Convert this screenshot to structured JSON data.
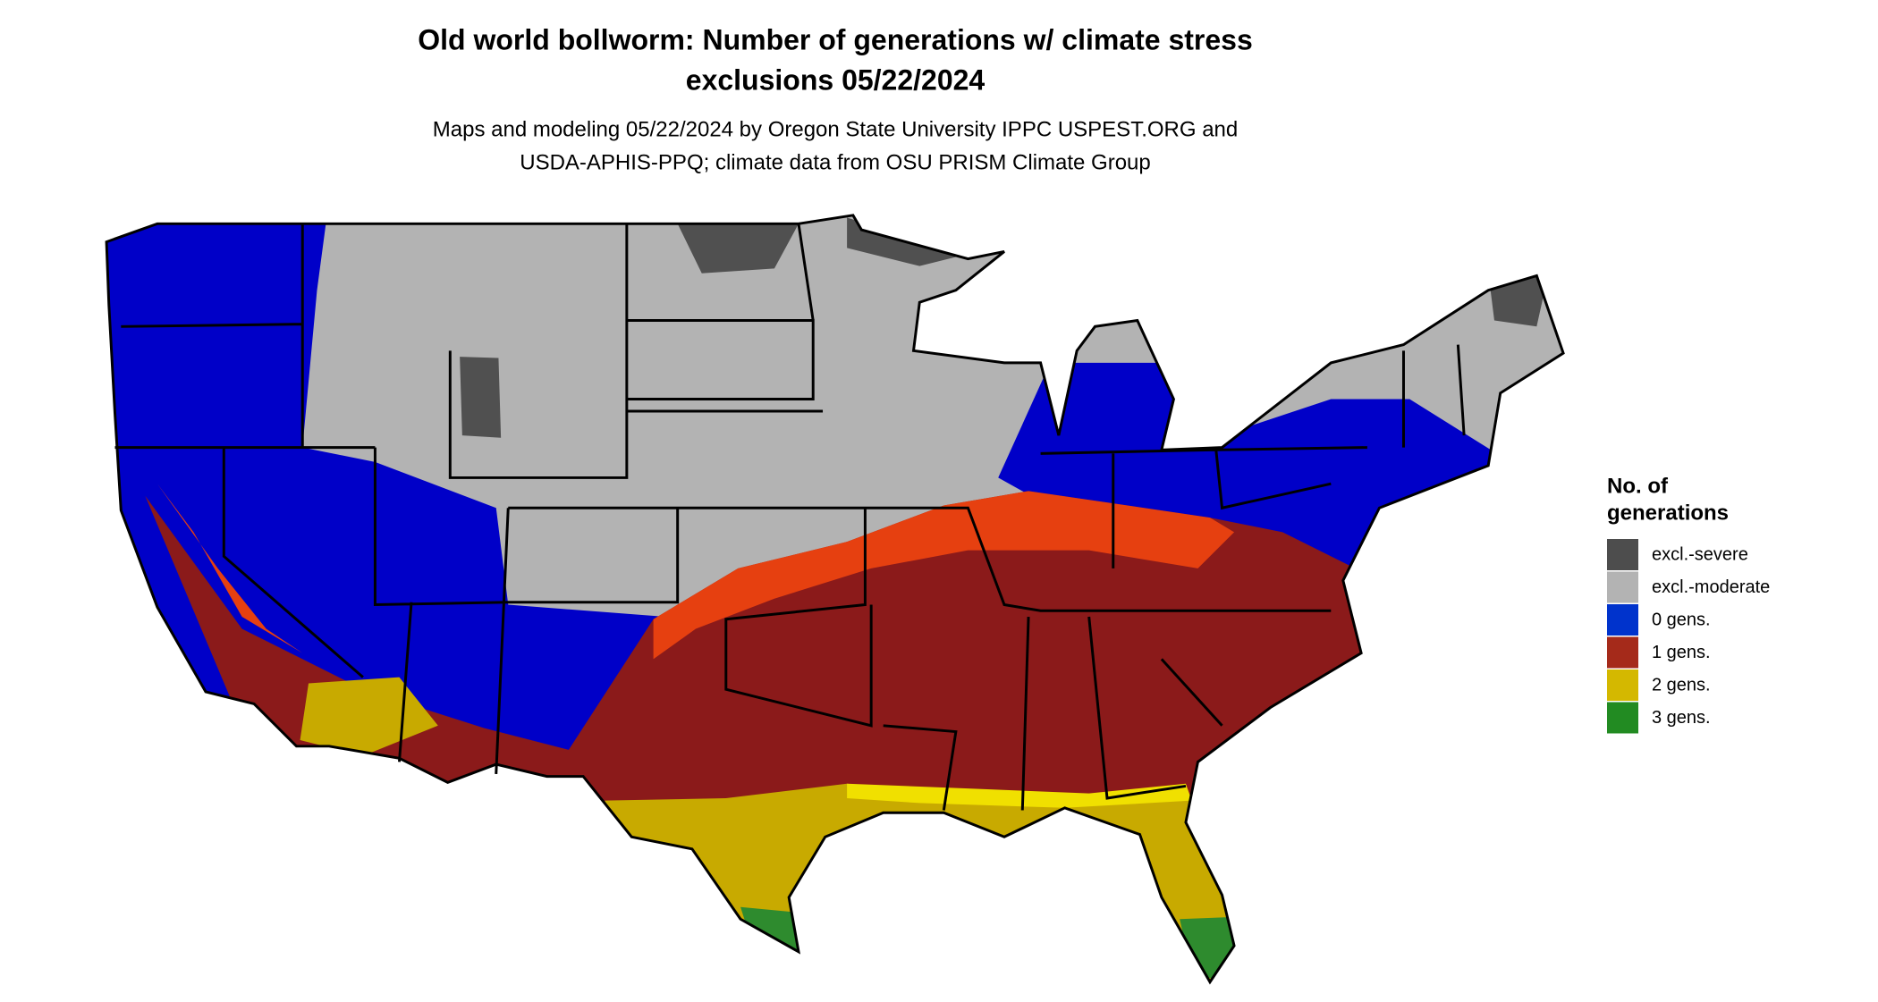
{
  "title": [
    "Old world bollworm: Number of generations w/ climate stress",
    "exclusions 05/22/2024"
  ],
  "subtitle": [
    "Maps and modeling 05/22/2024 by Oregon State University IPPC USPEST.ORG and",
    "USDA-APHIS-PPQ; climate data from OSU PRISM Climate Group"
  ],
  "legend": {
    "title": [
      "No. of",
      "generations"
    ],
    "items": [
      {
        "label": "excl.-severe",
        "color": "#4d4d4d"
      },
      {
        "label": "excl.-moderate",
        "color": "#b3b3b3"
      },
      {
        "label": "0 gens.",
        "color": "#0033cc"
      },
      {
        "label": "1 gens.",
        "color": "#a52a1a"
      },
      {
        "label": "2 gens.",
        "color": "#d4b800"
      },
      {
        "label": "3 gens.",
        "color": "#228b22"
      }
    ]
  }
}
